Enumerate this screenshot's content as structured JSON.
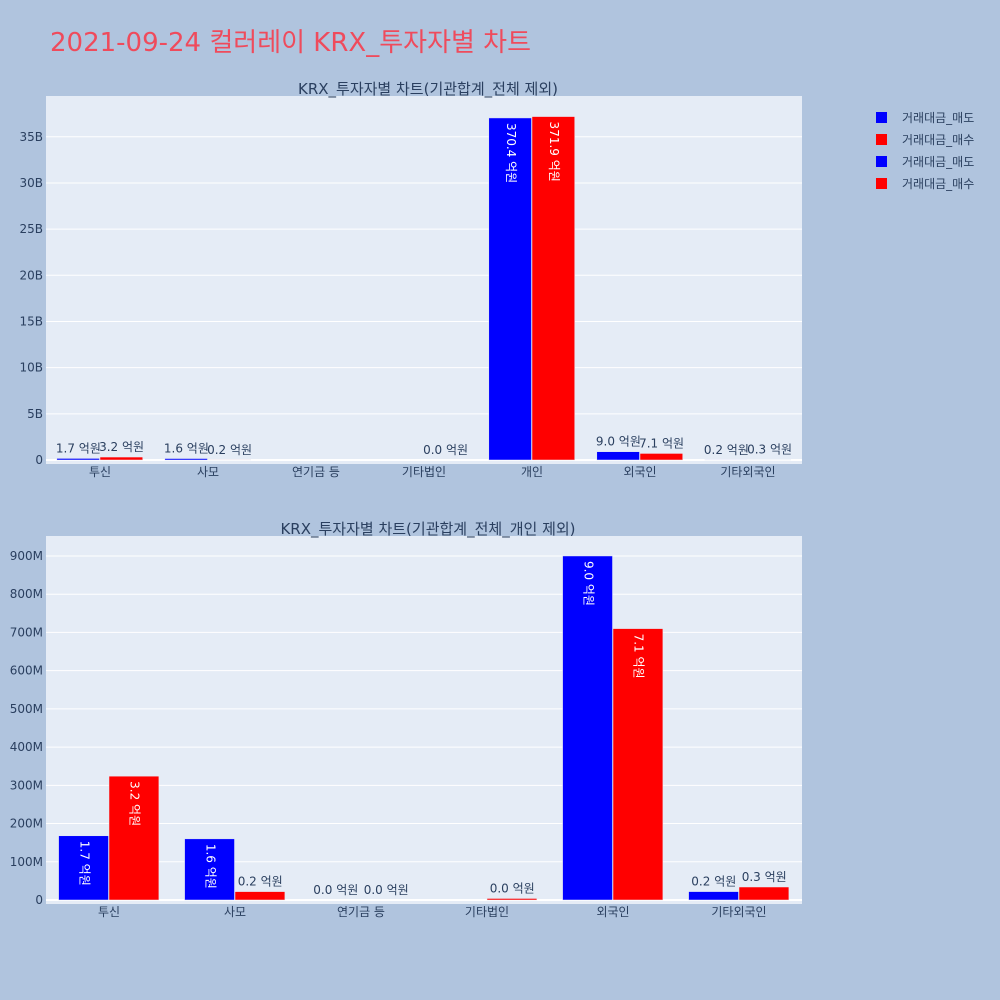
{
  "page_title": "2021-09-24 컬러레이 KRX_투자자별 차트",
  "colors": {
    "sell": "#0000ff",
    "buy": "#ff0000",
    "plot_bg": "#e5ecf6",
    "page_bg": "#b0c4de",
    "title": "#ef4b5c",
    "text": "#2a3f5f"
  },
  "legend": [
    {
      "label": "거래대금_매도",
      "color": "#0000ff"
    },
    {
      "label": "거래대금_매수",
      "color": "#ff0000"
    },
    {
      "label": "거래대금_매도",
      "color": "#0000ff"
    },
    {
      "label": "거래대금_매수",
      "color": "#ff0000"
    }
  ],
  "chart_data": [
    {
      "type": "bar",
      "title": "KRX_투자자별 차트(기관합계_전체 제외)",
      "categories": [
        "투신",
        "사모",
        "연기금 등",
        "기타법인",
        "개인",
        "외국인",
        "기타외국인"
      ],
      "series": [
        {
          "name": "거래대금_매도",
          "values": [
            170000000,
            160000000,
            0,
            0,
            37040000000,
            900000000,
            20000000
          ],
          "labels": [
            "1.7 억원",
            "1.6 억원",
            "",
            "",
            "370.4 억원",
            "9.0 억원",
            "0.2 억원"
          ]
        },
        {
          "name": "거래대금_매수",
          "values": [
            320000000,
            20000000,
            0,
            0,
            37190000000,
            710000000,
            30000000
          ],
          "labels": [
            "3.2 억원",
            "0.2 억원",
            "",
            "0.0 억원",
            "371.9 억원",
            "7.1 억원",
            "0.3 억원"
          ]
        }
      ],
      "yticks": [
        0,
        5000000000,
        10000000000,
        15000000000,
        20000000000,
        25000000000,
        30000000000,
        35000000000
      ],
      "ytick_labels": [
        "0",
        "5B",
        "10B",
        "15B",
        "20B",
        "25B",
        "30B",
        "35B"
      ],
      "ylim": [
        0,
        39200000000
      ],
      "grid": true
    },
    {
      "type": "bar",
      "title": "KRX_투자자별 차트(기관합계_전체_개인 제외)",
      "categories": [
        "투신",
        "사모",
        "연기금 등",
        "기타법인",
        "외국인",
        "기타외국인"
      ],
      "series": [
        {
          "name": "거래대금_매도",
          "values": [
            168000000,
            160000000,
            0,
            0,
            900000000,
            22000000
          ],
          "labels": [
            "1.7 억원",
            "1.6 억원",
            "0.0 억원",
            "",
            "9.0 억원",
            "0.2 억원"
          ]
        },
        {
          "name": "거래대금_매수",
          "values": [
            324000000,
            22000000,
            0,
            4000000,
            710000000,
            34000000
          ],
          "labels": [
            "3.2 억원",
            "0.2 억원",
            "0.0 억원",
            "0.0 억원",
            "7.1 억원",
            "0.3 억원"
          ]
        }
      ],
      "yticks": [
        0,
        100000000,
        200000000,
        300000000,
        400000000,
        500000000,
        600000000,
        700000000,
        800000000,
        900000000
      ],
      "ytick_labels": [
        "0",
        "100M",
        "200M",
        "300M",
        "400M",
        "500M",
        "600M",
        "700M",
        "800M",
        "900M"
      ],
      "ylim": [
        0,
        947000000
      ],
      "grid": true
    }
  ]
}
